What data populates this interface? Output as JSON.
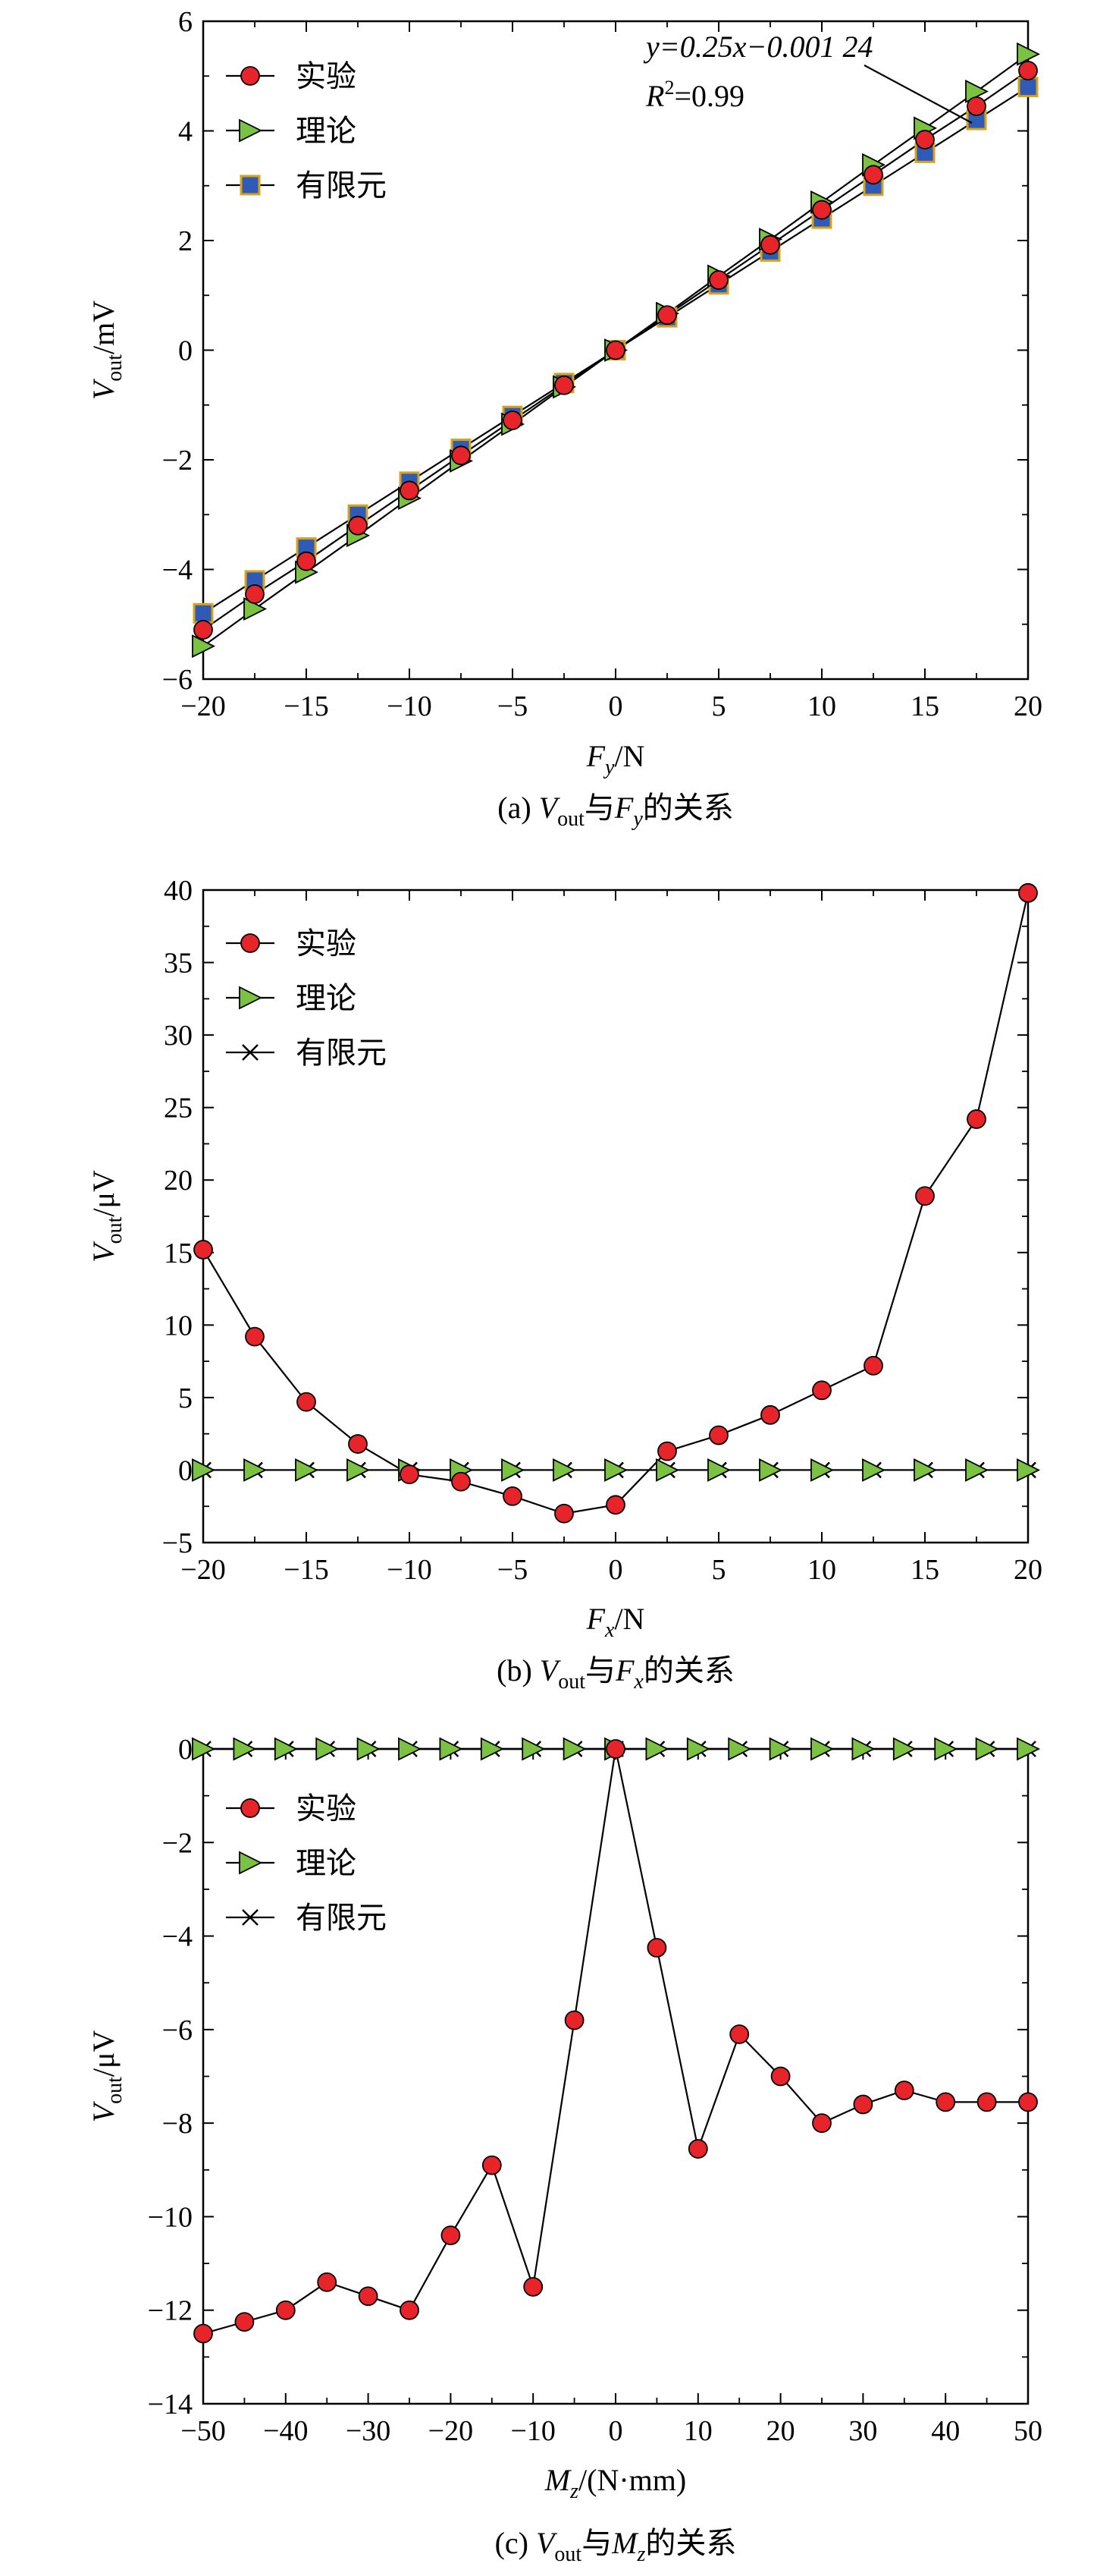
{
  "chart_data": [
    {
      "type": "line",
      "caption": {
        "a": "(a) ",
        "b": "V",
        "c": "out",
        "d": "与",
        "e": "F",
        "f": "y",
        "g": "的关系"
      },
      "xlabel": {
        "main": "F",
        "sub": "y",
        "unit": "/N"
      },
      "ylabel": {
        "main": "V",
        "sub": "out",
        "unit": "/mV"
      },
      "xlim": [
        -20,
        20
      ],
      "ylim": [
        -6,
        6
      ],
      "xticks": [
        -20,
        -15,
        -10,
        -5,
        0,
        5,
        10,
        15,
        20
      ],
      "yticks": [
        -6,
        -4,
        -2,
        0,
        2,
        4,
        6
      ],
      "legend_position": "top-left",
      "annotation": {
        "line1": "y=0.25x−0.001 24",
        "r": "R",
        "sup": "2",
        "rest": "=0.99"
      },
      "x": [
        -20,
        -17.5,
        -15,
        -12.5,
        -10,
        -7.5,
        -5,
        -2.5,
        0,
        2.5,
        5,
        7.5,
        10,
        12.5,
        15,
        17.5,
        20
      ],
      "series": [
        {
          "name": "实验",
          "marker": "circle",
          "color": "#e8242b",
          "values": [
            -5.1,
            -4.45,
            -3.85,
            -3.2,
            -2.56,
            -1.92,
            -1.28,
            -0.64,
            0,
            0.64,
            1.28,
            1.92,
            2.56,
            3.2,
            3.84,
            4.45,
            5.1
          ]
        },
        {
          "name": "理论",
          "marker": "triangle-right",
          "color": "#7cc242",
          "values": [
            -5.4,
            -4.72,
            -4.05,
            -3.38,
            -2.7,
            -2.02,
            -1.35,
            -0.67,
            0,
            0.67,
            1.35,
            2.02,
            2.7,
            3.38,
            4.05,
            4.72,
            5.4
          ]
        },
        {
          "name": "有限元",
          "marker": "square",
          "color": "#2f5bb7",
          "values": [
            -4.8,
            -4.2,
            -3.6,
            -3.0,
            -2.4,
            -1.8,
            -1.2,
            -0.6,
            0,
            0.6,
            1.2,
            1.8,
            2.4,
            3.0,
            3.6,
            4.2,
            4.8
          ]
        }
      ]
    },
    {
      "type": "line",
      "caption": {
        "a": "(b) ",
        "b": "V",
        "c": "out",
        "d": "与",
        "e": "F",
        "f": "x",
        "g": "的关系"
      },
      "xlabel": {
        "main": "F",
        "sub": "x",
        "unit": "/N"
      },
      "ylabel": {
        "main": "V",
        "sub": "out",
        "unit": "/μV"
      },
      "xlim": [
        -20,
        20
      ],
      "ylim": [
        -5,
        40
      ],
      "xticks": [
        -20,
        -15,
        -10,
        -5,
        0,
        5,
        10,
        15,
        20
      ],
      "yticks": [
        -5,
        0,
        5,
        10,
        15,
        20,
        25,
        30,
        35,
        40
      ],
      "legend_position": "top-left",
      "x": [
        -20,
        -17.5,
        -15,
        -12.5,
        -10,
        -7.5,
        -5,
        -2.5,
        0,
        2.5,
        5,
        7.5,
        10,
        12.5,
        15,
        17.5,
        20
      ],
      "series": [
        {
          "name": "实验",
          "marker": "circle",
          "color": "#e8242b",
          "values": [
            15.2,
            9.2,
            4.7,
            1.8,
            -0.3,
            -0.8,
            -1.8,
            -3.0,
            -2.4,
            1.3,
            2.4,
            3.8,
            5.5,
            7.2,
            18.9,
            24.2,
            39.8
          ]
        },
        {
          "name": "理论",
          "marker": "triangle-right",
          "color": "#7cc242",
          "values": [
            0,
            0,
            0,
            0,
            0,
            0,
            0,
            0,
            0,
            0,
            0,
            0,
            0,
            0,
            0,
            0,
            0
          ]
        },
        {
          "name": "有限元",
          "marker": "cross",
          "color": "#000000",
          "values": [
            0,
            0,
            0,
            0,
            0,
            0,
            0,
            0,
            0,
            0,
            0,
            0,
            0,
            0,
            0,
            0,
            0
          ]
        }
      ]
    },
    {
      "type": "line",
      "caption": {
        "a": "(c) ",
        "b": "V",
        "c": "out",
        "d": "与",
        "e": "M",
        "f": "z",
        "g": "的关系"
      },
      "xlabel": {
        "main": "M",
        "sub": "z",
        "unit": "/(N·mm)"
      },
      "ylabel": {
        "main": "V",
        "sub": "out",
        "unit": "/μV"
      },
      "xlim": [
        -50,
        50
      ],
      "ylim": [
        -14,
        0
      ],
      "xticks": [
        -50,
        -40,
        -30,
        -20,
        -10,
        0,
        10,
        20,
        30,
        40,
        50
      ],
      "yticks": [
        -14,
        -12,
        -10,
        -8,
        -6,
        -4,
        -2,
        0
      ],
      "legend_position": "top-left",
      "x": [
        -50,
        -45,
        -40,
        -35,
        -30,
        -25,
        -20,
        -15,
        -10,
        -5,
        0,
        5,
        10,
        15,
        20,
        25,
        30,
        35,
        40,
        45,
        50
      ],
      "series": [
        {
          "name": "实验",
          "marker": "circle",
          "color": "#e8242b",
          "values": [
            -12.5,
            -12.25,
            -12.0,
            -11.4,
            -11.7,
            -12.0,
            -10.4,
            -8.9,
            -11.5,
            -5.8,
            0,
            -4.25,
            -8.55,
            -6.1,
            -7.0,
            -8.0,
            -7.6,
            -7.3,
            -7.55,
            -7.55,
            -7.55
          ]
        },
        {
          "name": "理论",
          "marker": "triangle-right",
          "color": "#7cc242",
          "values": [
            0,
            0,
            0,
            0,
            0,
            0,
            0,
            0,
            0,
            0,
            0,
            0,
            0,
            0,
            0,
            0,
            0,
            0,
            0,
            0,
            0
          ]
        },
        {
          "name": "有限元",
          "marker": "cross",
          "color": "#000000",
          "values": [
            0,
            0,
            0,
            0,
            0,
            0,
            0,
            0,
            0,
            0,
            0,
            0,
            0,
            0,
            0,
            0,
            0,
            0,
            0,
            0,
            0
          ]
        }
      ]
    }
  ]
}
